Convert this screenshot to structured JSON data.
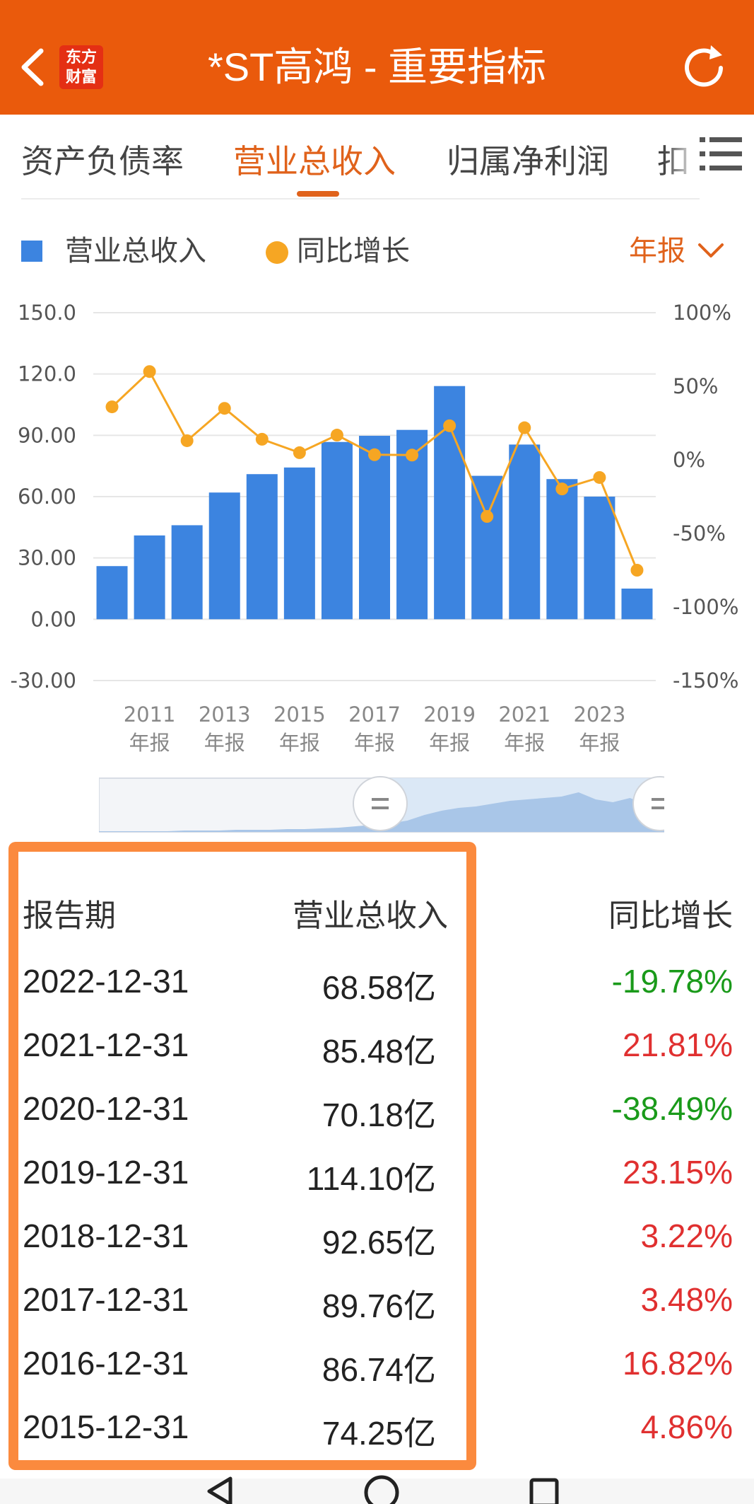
{
  "header": {
    "title": "*ST高鸿 - 重要指标",
    "logo_line1": "东方",
    "logo_line2": "财富"
  },
  "tabs": [
    {
      "label": "资产负债率"
    },
    {
      "label": "营业总收入"
    },
    {
      "label": "归属净利润"
    },
    {
      "label": "扣"
    }
  ],
  "legend": {
    "revenue": "营业总收入",
    "yoy": "同比增长",
    "period": "年报"
  },
  "colors": {
    "brand": "#ea5a0c",
    "accent": "#e0621b",
    "bar": "#3c84e0",
    "line": "#f6a623",
    "up": "#e03030",
    "down": "#1a9a1a",
    "highlight_box": "#fb8a3e"
  },
  "chart_data": {
    "type": "bar",
    "left_axis_ticks": [
      "150.0",
      "120.0",
      "90.00",
      "60.00",
      "30.00",
      "0.00",
      "-30.00"
    ],
    "right_axis_ticks": [
      "100%",
      "50%",
      "0%",
      "-50%",
      "-100%",
      "-150%"
    ],
    "x_tick_labels": [
      {
        "year": "2011",
        "suffix": "年报"
      },
      {
        "year": "2013",
        "suffix": "年报"
      },
      {
        "year": "2015",
        "suffix": "年报"
      },
      {
        "year": "2017",
        "suffix": "年报"
      },
      {
        "year": "2019",
        "suffix": "年报"
      },
      {
        "year": "2021",
        "suffix": "年报"
      },
      {
        "year": "2023",
        "suffix": "年报"
      }
    ],
    "x": [
      2010,
      2011,
      2012,
      2013,
      2014,
      2015,
      2016,
      2017,
      2018,
      2019,
      2020,
      2021,
      2022,
      2023,
      2024
    ],
    "series": [
      {
        "name": "营业总收入",
        "axis": "left",
        "values": [
          26,
          41,
          46,
          62,
          71,
          74.25,
          86.74,
          89.76,
          92.65,
          114.1,
          70.18,
          85.48,
          68.58,
          60,
          15
        ]
      },
      {
        "name": "同比增长",
        "axis": "right",
        "values": [
          36,
          60,
          13,
          35,
          14,
          4.86,
          16.82,
          3.48,
          3.22,
          23.15,
          -38.49,
          21.81,
          -19.78,
          -12,
          -75
        ]
      }
    ],
    "ylim_left": [
      -30,
      150
    ],
    "ylim_right": [
      -150,
      100
    ]
  },
  "slider": {
    "profile": [
      1,
      1,
      1,
      1,
      1,
      2,
      2,
      2,
      3,
      3,
      3,
      4,
      4,
      5,
      6,
      8,
      10,
      12,
      16,
      24,
      30,
      34,
      36,
      40,
      44,
      46,
      48,
      50,
      56,
      46,
      42,
      48,
      38,
      32
    ]
  },
  "table": {
    "headers": {
      "period": "报告期",
      "revenue": "营业总收入",
      "yoy": "同比增长"
    },
    "rows": [
      {
        "date": "2022-12-31",
        "revenue": "68.58亿",
        "yoy": "-19.78%",
        "dir": "down"
      },
      {
        "date": "2021-12-31",
        "revenue": "85.48亿",
        "yoy": "21.81%",
        "dir": "up"
      },
      {
        "date": "2020-12-31",
        "revenue": "70.18亿",
        "yoy": "-38.49%",
        "dir": "down"
      },
      {
        "date": "2019-12-31",
        "revenue": "114.10亿",
        "yoy": "23.15%",
        "dir": "up"
      },
      {
        "date": "2018-12-31",
        "revenue": "92.65亿",
        "yoy": "3.22%",
        "dir": "up"
      },
      {
        "date": "2017-12-31",
        "revenue": "89.76亿",
        "yoy": "3.48%",
        "dir": "up"
      },
      {
        "date": "2016-12-31",
        "revenue": "86.74亿",
        "yoy": "16.82%",
        "dir": "up"
      },
      {
        "date": "2015-12-31",
        "revenue": "74.25亿",
        "yoy": "4.86%",
        "dir": "up"
      }
    ]
  }
}
